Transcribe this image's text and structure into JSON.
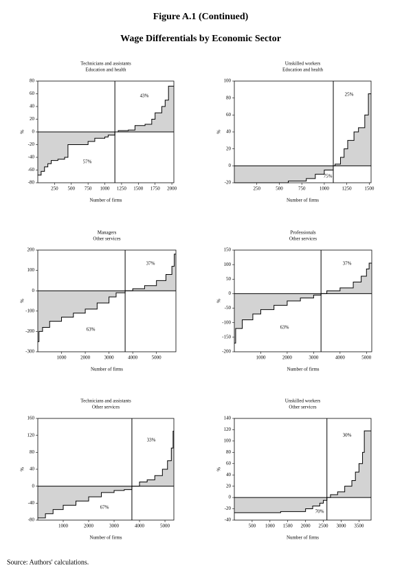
{
  "header": {
    "figure": "Figure A.1 (Continued)",
    "title": "Wage Differentials by Economic Sector"
  },
  "source": "Source: Authors' calculations.",
  "chart_data": [
    {
      "type": "area",
      "title": "Technicians and assistants",
      "subtitle": "Education and health",
      "xlabel": "Number of firms",
      "ylabel": "%",
      "color": "#d3d3d3",
      "annotations": [
        "43%",
        "57%"
      ],
      "x": [
        0,
        50,
        100,
        150,
        200,
        300,
        400,
        450,
        700,
        750,
        850,
        1000,
        1050,
        1150,
        1200,
        1350,
        1450,
        1600,
        1700,
        1750,
        1850,
        1900,
        1950
      ],
      "values": [
        -68,
        -62,
        -55,
        -50,
        -45,
        -43,
        -40,
        -20,
        -20,
        -15,
        -10,
        -8,
        -5,
        0,
        2,
        3,
        10,
        12,
        20,
        30,
        40,
        50,
        72
      ],
      "xlim": [
        0,
        2030
      ],
      "xticks": [
        250,
        500,
        750,
        1000,
        1250,
        1500,
        1750,
        2000
      ],
      "ylim": [
        -80,
        80
      ],
      "yticks": [
        -80,
        -60,
        -40,
        -20,
        0,
        20,
        40,
        60,
        80
      ]
    },
    {
      "type": "area",
      "title": "Unskilled workers",
      "subtitle": "Education and health",
      "xlabel": "Number of firms",
      "ylabel": "%",
      "color": "#d3d3d3",
      "annotations": [
        "25%",
        "75%"
      ],
      "x": [
        0,
        600,
        800,
        900,
        1000,
        1100,
        1120,
        1180,
        1220,
        1260,
        1330,
        1380,
        1450,
        1490
      ],
      "values": [
        -20,
        -18,
        -15,
        -10,
        -5,
        0,
        2,
        10,
        20,
        30,
        40,
        45,
        60,
        85
      ],
      "xlim": [
        0,
        1520
      ],
      "xticks": [
        250,
        500,
        750,
        1000,
        1250,
        1500
      ],
      "ylim": [
        -20,
        100
      ],
      "yticks": [
        -20,
        0,
        20,
        40,
        60,
        80,
        100
      ]
    },
    {
      "type": "area",
      "title": "Managers",
      "subtitle": "Other services",
      "xlabel": "Number of firms",
      "ylabel": "%",
      "color": "#d3d3d3",
      "annotations": [
        "37%",
        "63%"
      ],
      "x": [
        0,
        50,
        200,
        500,
        1000,
        1500,
        2000,
        2500,
        3000,
        3300,
        3680,
        4000,
        4500,
        5000,
        5400,
        5650,
        5750
      ],
      "values": [
        -250,
        -200,
        -180,
        -150,
        -130,
        -110,
        -90,
        -60,
        -30,
        -10,
        0,
        10,
        25,
        50,
        80,
        120,
        180
      ],
      "xlim": [
        0,
        5820
      ],
      "xticks": [
        1000,
        2000,
        3000,
        4000,
        5000
      ],
      "ylim": [
        -300,
        200
      ],
      "yticks": [
        -300,
        -200,
        -100,
        0,
        100,
        200
      ]
    },
    {
      "type": "area",
      "title": "Professionals",
      "subtitle": "Other services",
      "xlabel": "Number of firms",
      "ylabel": "%",
      "color": "#d3d3d3",
      "annotations": [
        "37%",
        "63%"
      ],
      "x": [
        0,
        50,
        300,
        700,
        1000,
        1500,
        2000,
        2500,
        3000,
        3280,
        3500,
        4000,
        4500,
        4800,
        5000,
        5100
      ],
      "values": [
        -170,
        -120,
        -90,
        -70,
        -55,
        -40,
        -25,
        -15,
        -5,
        0,
        10,
        20,
        40,
        60,
        85,
        105
      ],
      "xlim": [
        0,
        5200
      ],
      "xticks": [
        1000,
        2000,
        3000,
        4000,
        5000
      ],
      "ylim": [
        -200,
        150
      ],
      "yticks": [
        -200,
        -150,
        -100,
        -50,
        0,
        50,
        100,
        150
      ]
    },
    {
      "type": "area",
      "title": "Technicians and assistants",
      "subtitle": "Other services",
      "xlabel": "Number of firms",
      "ylabel": "%",
      "color": "#d3d3d3",
      "annotations": [
        "33%",
        "67%"
      ],
      "x": [
        0,
        300,
        600,
        1000,
        1500,
        2000,
        2500,
        3000,
        3400,
        3700,
        4000,
        4300,
        4600,
        4900,
        5100,
        5250,
        5320
      ],
      "values": [
        -75,
        -65,
        -55,
        -45,
        -35,
        -25,
        -15,
        -10,
        -8,
        0,
        10,
        15,
        25,
        40,
        60,
        90,
        130
      ],
      "xlim": [
        0,
        5350
      ],
      "xticks": [
        1000,
        2000,
        3000,
        4000,
        5000
      ],
      "ylim": [
        -80,
        160
      ],
      "yticks": [
        -80,
        -40,
        0,
        40,
        80,
        120,
        160
      ]
    },
    {
      "type": "area",
      "title": "Unskilled workers",
      "subtitle": "Other services",
      "xlabel": "Number of firms",
      "ylabel": "%",
      "color": "#d3d3d3",
      "annotations": [
        "30%",
        "70%"
      ],
      "x": [
        0,
        1300,
        2000,
        2200,
        2400,
        2500,
        2600,
        2700,
        2900,
        3100,
        3300,
        3400,
        3500,
        3600,
        3650
      ],
      "values": [
        -27,
        -25,
        -20,
        -15,
        -10,
        -5,
        0,
        5,
        10,
        20,
        30,
        45,
        60,
        80,
        118
      ],
      "xlim": [
        0,
        3840
      ],
      "xticks": [
        500,
        1000,
        1500,
        2000,
        2500,
        3000,
        3500
      ],
      "ylim": [
        -40,
        140
      ],
      "yticks": [
        -40,
        -20,
        0,
        20,
        40,
        60,
        80,
        100,
        120,
        140
      ]
    }
  ]
}
